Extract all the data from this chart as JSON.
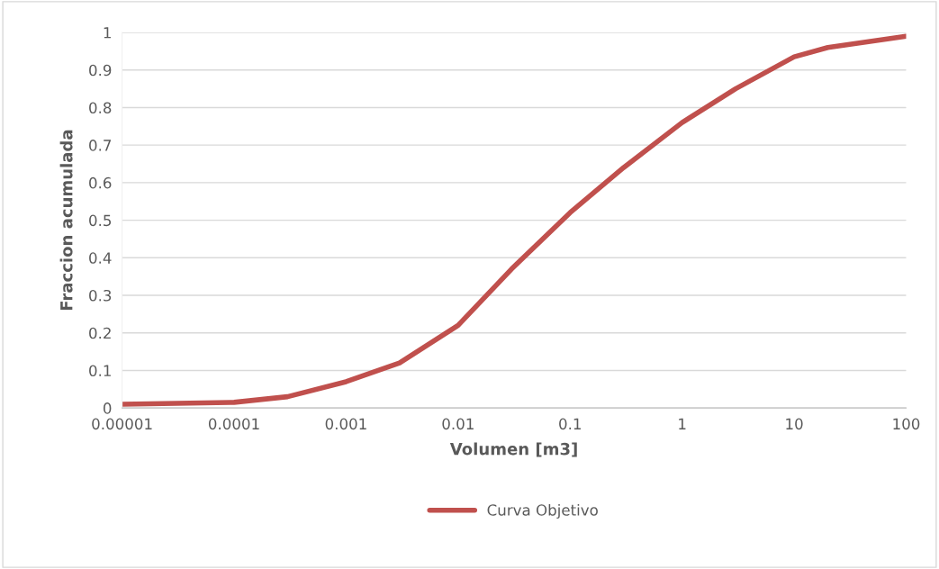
{
  "chart_data": {
    "type": "line",
    "xlabel": "Volumen [m3]",
    "ylabel": "Fraccion acumulada",
    "log": "x",
    "series": [
      {
        "name": "Curva Objetivo",
        "color": "#c0504d",
        "x": [
          1e-05,
          0.0001,
          0.0003,
          0.001,
          0.003,
          0.01,
          0.03,
          0.1,
          0.3,
          1,
          3,
          10,
          20,
          100
        ],
        "values": [
          0.01,
          0.015,
          0.03,
          0.07,
          0.12,
          0.22,
          0.37,
          0.52,
          0.64,
          0.76,
          0.85,
          0.935,
          0.96,
          0.99
        ]
      }
    ],
    "xlim": [
      1e-05,
      100
    ],
    "xticks": [
      {
        "value": 1e-05,
        "label": "0.00001"
      },
      {
        "value": 0.0001,
        "label": "0.0001"
      },
      {
        "value": 0.001,
        "label": "0.001"
      },
      {
        "value": 0.01,
        "label": "0.01"
      },
      {
        "value": 0.1,
        "label": "0.1"
      },
      1,
      10,
      100
    ],
    "ylim": [
      0,
      1
    ],
    "yticks": [
      0,
      0.1,
      0.2,
      0.3,
      0.4,
      0.5,
      0.6,
      0.7,
      0.8,
      0.9,
      1
    ],
    "grid": "y",
    "legend": "bottom",
    "line_style": "solid",
    "marker": "none"
  }
}
